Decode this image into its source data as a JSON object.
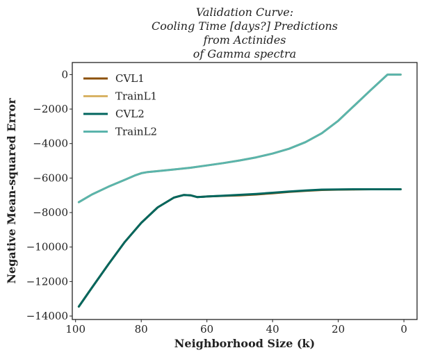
{
  "chart_data": {
    "type": "line",
    "title_lines": [
      "Validation Curve:",
      "Cooling Time [days?] Predictions",
      "from Actinides",
      "of Gamma spectra"
    ],
    "xlabel": "Neighborhood Size (k)",
    "ylabel": "Negative Mean-squared Error",
    "xlim": [
      101,
      -4
    ],
    "ylim": [
      -14200,
      700
    ],
    "xticks": [
      100,
      80,
      60,
      40,
      20,
      0
    ],
    "yticks": [
      0,
      -2000,
      -4000,
      -6000,
      -8000,
      -10000,
      -12000,
      -14000
    ],
    "xtick_labels": [
      "100",
      "80",
      "60",
      "40",
      "20",
      "0"
    ],
    "ytick_labels": [
      "0",
      "−2000",
      "−4000",
      "−6000",
      "−8000",
      "−10000",
      "−12000",
      "−14000"
    ],
    "legend_position": "upper-left",
    "grid": false,
    "series": [
      {
        "name": "CVL1",
        "color": "#8c510a",
        "x": [
          99,
          95,
          90,
          85,
          80,
          75,
          70,
          67,
          65,
          63,
          61,
          60,
          55,
          50,
          45,
          40,
          35,
          30,
          25,
          20,
          15,
          10,
          5,
          1
        ],
        "y": [
          -13450,
          -12350,
          -11000,
          -9700,
          -8600,
          -7700,
          -7130,
          -6980,
          -7000,
          -7100,
          -7080,
          -7070,
          -7030,
          -7000,
          -6950,
          -6880,
          -6800,
          -6740,
          -6690,
          -6670,
          -6660,
          -6650,
          -6650,
          -6650
        ]
      },
      {
        "name": "TrainL1",
        "color": "#d8b365",
        "x": [
          99,
          95,
          90,
          85,
          82,
          80,
          78,
          75,
          70,
          65,
          60,
          55,
          50,
          45,
          40,
          35,
          30,
          25,
          20,
          15,
          10,
          5,
          3,
          1
        ],
        "y": [
          -7400,
          -6950,
          -6500,
          -6100,
          -5850,
          -5720,
          -5650,
          -5600,
          -5500,
          -5400,
          -5270,
          -5130,
          -4980,
          -4800,
          -4580,
          -4300,
          -3920,
          -3400,
          -2680,
          -1780,
          -880,
          0,
          0,
          0
        ]
      },
      {
        "name": "CVL2",
        "color": "#01665e",
        "x": [
          99,
          95,
          90,
          85,
          80,
          75,
          70,
          67,
          65,
          63,
          61,
          60,
          55,
          50,
          45,
          40,
          35,
          30,
          25,
          20,
          15,
          10,
          5,
          1
        ],
        "y": [
          -13450,
          -12350,
          -11000,
          -9700,
          -8600,
          -7700,
          -7130,
          -6980,
          -7000,
          -7100,
          -7080,
          -7070,
          -7020,
          -6970,
          -6920,
          -6850,
          -6780,
          -6720,
          -6670,
          -6660,
          -6650,
          -6650,
          -6650,
          -6650
        ]
      },
      {
        "name": "TrainL2",
        "color": "#5ab4ac",
        "x": [
          99,
          95,
          90,
          85,
          82,
          80,
          78,
          75,
          70,
          65,
          60,
          55,
          50,
          45,
          40,
          35,
          30,
          25,
          20,
          15,
          10,
          5,
          3,
          1
        ],
        "y": [
          -7400,
          -6950,
          -6500,
          -6100,
          -5850,
          -5720,
          -5650,
          -5600,
          -5500,
          -5400,
          -5270,
          -5130,
          -4980,
          -4800,
          -4580,
          -4300,
          -3920,
          -3400,
          -2680,
          -1780,
          -880,
          0,
          0,
          0
        ]
      }
    ]
  }
}
